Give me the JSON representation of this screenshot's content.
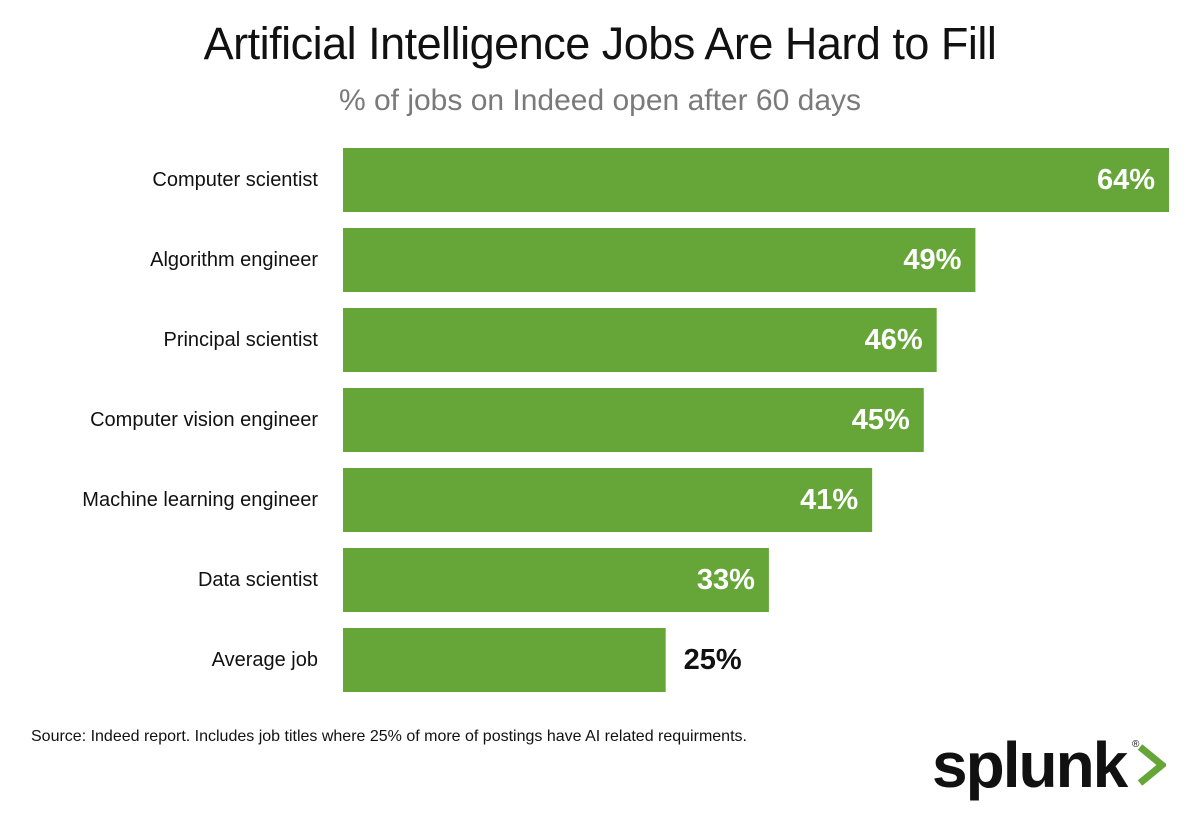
{
  "header": {
    "title": "Artificial Intelligence Jobs Are Hard to Fill",
    "subtitle": "% of jobs on Indeed open after 60 days"
  },
  "colors": {
    "bar": "#66a638",
    "label_inside": "#ffffff",
    "label_outside": "#111111",
    "logo_chevron": "#66a638"
  },
  "chart_data": {
    "type": "bar",
    "orientation": "horizontal",
    "title": "Artificial Intelligence Jobs Are Hard to Fill",
    "subtitle": "% of jobs on Indeed open after 60 days",
    "xlabel": "",
    "ylabel": "",
    "xlim": [
      0,
      64
    ],
    "grid": false,
    "categories": [
      "Computer scientist",
      "Algorithm engineer",
      "Principal scientist",
      "Computer vision engineer",
      "Machine learning engineer",
      "Data scientist",
      "Average job"
    ],
    "values": [
      64,
      49,
      46,
      45,
      41,
      33,
      25
    ],
    "value_labels": [
      "64%",
      "49%",
      "46%",
      "45%",
      "41%",
      "33%",
      "25%"
    ],
    "label_outside_bar": [
      false,
      false,
      false,
      false,
      false,
      false,
      true
    ]
  },
  "footer": {
    "source": "Source: Indeed report. Includes job titles where 25% of more of postings have AI related requirments.",
    "logo_text": "splunk",
    "logo_mark": "®"
  }
}
